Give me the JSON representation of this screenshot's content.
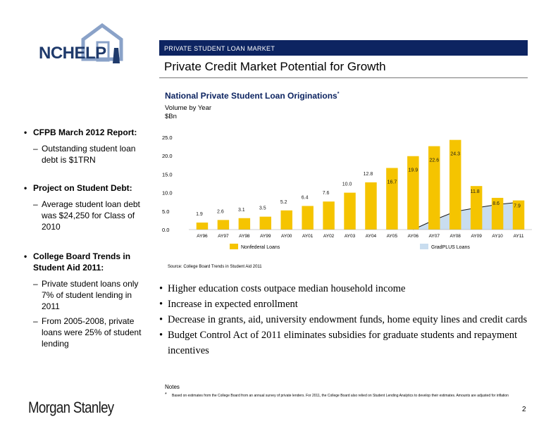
{
  "brand": {
    "logo_text": "NCHELP",
    "footer_logo": "Morgan Stanley"
  },
  "header": {
    "section": "PRIVATE STUDENT LOAN MARKET",
    "title": "Private Credit Market Potential for Growth"
  },
  "sidebar": {
    "groups": [
      {
        "heading": "CFPB March 2012 Report:",
        "items": [
          "Outstanding student loan debt is $1TRN"
        ]
      },
      {
        "heading": "Project on Student Debt:",
        "items": [
          "Average student loan debt was $24,250 for Class of 2010"
        ]
      },
      {
        "heading": "College Board Trends in Student Aid 2011:",
        "items": [
          "Private student loans only 7% of student lending in 2011",
          "From 2005-2008, private loans were 25% of student lending"
        ]
      }
    ]
  },
  "chart_data": {
    "type": "bar",
    "title": "National Private Student Loan Originations",
    "title_mark": "*",
    "subtitle_lines": [
      "Volume by Year",
      "$Bn"
    ],
    "categories": [
      "AY96",
      "AY97",
      "AY98",
      "AY99",
      "AY00",
      "AY01",
      "AY02",
      "AY03",
      "AY04",
      "AY05",
      "AY06",
      "AY07",
      "AY08",
      "AY09",
      "AY10",
      "AY11"
    ],
    "series": [
      {
        "name": "Nonfederal Loans",
        "values": [
          1.9,
          2.6,
          3.1,
          3.5,
          5.2,
          6.4,
          7.6,
          10.0,
          12.8,
          16.7,
          19.9,
          22.6,
          24.3,
          11.8,
          8.6,
          7.9
        ]
      },
      {
        "name": "GradPLUS Loans",
        "values": [
          0,
          0,
          0,
          0,
          0,
          0,
          0,
          0,
          0,
          0,
          0,
          2.6,
          4.9,
          5.9,
          6.8,
          7.4
        ]
      }
    ],
    "ylim": [
      0,
      25
    ],
    "yticks": [
      "25.0",
      "20.0",
      "15.0",
      "10.0",
      "5.0",
      "0.0"
    ],
    "legend_position": "bottom",
    "colors": {
      "nonfederal": "#f5c400",
      "gradplus": "#c9ddef",
      "label_box": "#ffffff",
      "line": "#1a1a1a"
    }
  },
  "source": "Source:     College Board Trends in Student Aid 2011",
  "points": [
    "Higher education costs outpace median household income",
    "Increase in expected enrollment",
    "Decrease in grants, aid, university endowment funds, home equity lines and credit cards",
    "Budget Control Act of 2011 eliminates subsidies for graduate students and repayment incentives"
  ],
  "notes": {
    "label": "Notes",
    "mark": "*",
    "text": "Based on estimates from the College Board from an annual survey of private lenders. For 2011, the College Board also relied on Student Lending Analytics to develop their estimates. Amounts are adjusted for inflation"
  },
  "page_number": "2"
}
